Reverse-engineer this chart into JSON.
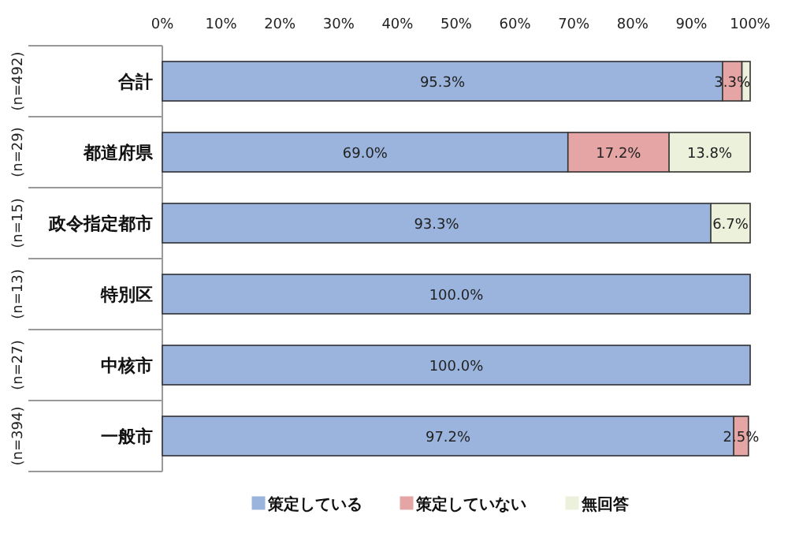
{
  "chart_data": {
    "type": "bar",
    "orientation": "horizontal",
    "stacked": true,
    "categories": [
      "合計",
      "都道府県",
      "政令指定都市",
      "特別区",
      "中核市",
      "一般市"
    ],
    "series": [
      {
        "name": "策定している",
        "color": "#9ab4dd",
        "values": [
          95.3,
          69.0,
          93.3,
          100.0,
          100.0,
          97.2
        ],
        "value_labels": [
          "95.3%",
          "69.0%",
          "93.3%",
          "100.0%",
          "100.0%",
          "97.2%"
        ]
      },
      {
        "name": "策定していない",
        "color": "#e6a5a5",
        "values": [
          3.3,
          17.2,
          null,
          null,
          null,
          2.5
        ],
        "value_labels": [
          "3.3%",
          "17.2%",
          null,
          null,
          null,
          "2.5%"
        ]
      },
      {
        "name": "無回答",
        "color": "#ebf1da",
        "values": [
          1.4,
          13.8,
          6.7,
          null,
          null,
          null
        ],
        "value_labels": [
          null,
          "13.8%",
          "6.7%",
          null,
          null,
          null
        ]
      }
    ],
    "xlim": [
      0,
      100
    ],
    "xticks": [
      {
        "value": 0,
        "label": "0%"
      },
      {
        "value": 10,
        "label": "10%"
      },
      {
        "value": 20,
        "label": "20%"
      },
      {
        "value": 30,
        "label": "30%"
      },
      {
        "value": 40,
        "label": "40%"
      },
      {
        "value": 50,
        "label": "50%"
      },
      {
        "value": 60,
        "label": "60%"
      },
      {
        "value": 70,
        "label": "70%"
      },
      {
        "value": 80,
        "label": "80%"
      },
      {
        "value": 90,
        "label": "90%"
      },
      {
        "value": 100,
        "label": "100%"
      }
    ],
    "annotations": [
      "(n=492)",
      "(n=29)",
      "(n=15)",
      "(n=13)",
      "(n=27)",
      "(n=394)"
    ],
    "grid": false,
    "legend": "bottom"
  }
}
